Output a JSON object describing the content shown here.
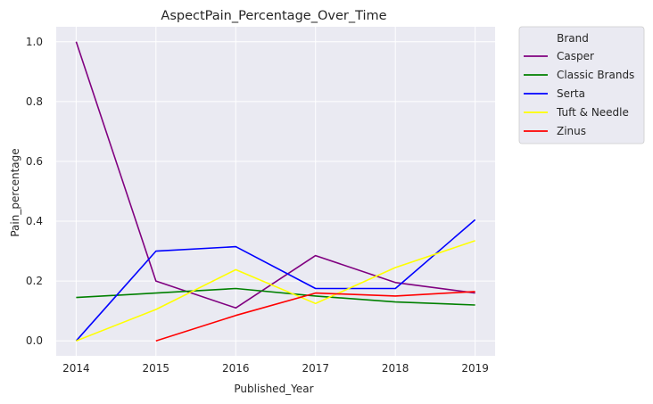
{
  "chart_data": {
    "type": "line",
    "title": "AspectPain_Percentage_Over_Time",
    "xlabel": "Published_Year",
    "ylabel": "Pain_percentage",
    "x": [
      2014,
      2015,
      2016,
      2017,
      2018,
      2019
    ],
    "xlim": [
      2013.75,
      2019.25
    ],
    "ylim": [
      -0.05,
      1.05
    ],
    "yticks": [
      0.0,
      0.2,
      0.4,
      0.6,
      0.8,
      1.0
    ],
    "ytick_labels": [
      "0.0",
      "0.2",
      "0.4",
      "0.6",
      "0.8",
      "1.0"
    ],
    "xtick_labels": [
      "2014",
      "2015",
      "2016",
      "2017",
      "2018",
      "2019"
    ],
    "grid": true,
    "legend": {
      "title": "Brand",
      "placement": "outside-top-right"
    },
    "series": [
      {
        "name": "Casper",
        "color": "#800080",
        "values": [
          1.0,
          0.2,
          0.11,
          0.285,
          0.195,
          0.16
        ]
      },
      {
        "name": "Classic Brands",
        "color": "#008000",
        "values": [
          0.145,
          0.16,
          0.175,
          0.15,
          0.13,
          0.12
        ]
      },
      {
        "name": "Serta",
        "color": "#0000ff",
        "values": [
          0.0,
          0.3,
          0.315,
          0.175,
          0.175,
          0.405
        ]
      },
      {
        "name": "Tuft & Needle",
        "color": "#ffff00",
        "values": [
          0.0,
          0.105,
          0.238,
          0.125,
          0.245,
          0.335
        ]
      },
      {
        "name": "Zinus",
        "color": "#ff0000",
        "values": [
          null,
          0.0,
          0.085,
          0.16,
          0.15,
          0.165
        ]
      }
    ]
  }
}
